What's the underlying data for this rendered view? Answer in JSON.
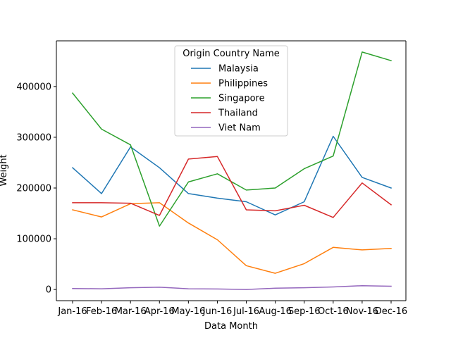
{
  "chart_data": {
    "type": "line",
    "xlabel": "Data Month",
    "ylabel": "Weight",
    "categories": [
      "Jan-16",
      "Feb-16",
      "Mar-16",
      "Apr-16",
      "May-16",
      "Jun-16",
      "Jul-16",
      "Aug-16",
      "Sep-16",
      "Oct-16",
      "Nov-16",
      "Dec-16"
    ],
    "ylim": [
      -22000,
      490000
    ],
    "yticks": [
      0,
      100000,
      200000,
      300000,
      400000
    ],
    "grid": false,
    "legend": {
      "title": "Origin Country Name",
      "placement": "upper-center"
    },
    "series": [
      {
        "name": "Malaysia",
        "color": "#1f77b4",
        "values": [
          240000,
          189000,
          281000,
          240000,
          189000,
          180000,
          173000,
          147000,
          173000,
          302000,
          221000,
          200000
        ]
      },
      {
        "name": "Philippines",
        "color": "#ff7f0e",
        "values": [
          157000,
          143000,
          169000,
          171000,
          131000,
          98000,
          47000,
          32000,
          51000,
          83000,
          78000,
          81000
        ]
      },
      {
        "name": "Singapore",
        "color": "#2ca02c",
        "values": [
          387000,
          316000,
          285000,
          125000,
          212000,
          228000,
          196000,
          200000,
          238000,
          263000,
          468000,
          451000
        ]
      },
      {
        "name": "Thailand",
        "color": "#d62728",
        "values": [
          171000,
          171000,
          170000,
          146000,
          257000,
          262000,
          157000,
          155000,
          166000,
          142000,
          210000,
          167000
        ]
      },
      {
        "name": "Viet Nam",
        "color": "#9467bd",
        "values": [
          2000,
          1500,
          3500,
          4500,
          1500,
          1000,
          0,
          2500,
          3500,
          5000,
          7500,
          6500
        ]
      }
    ]
  }
}
